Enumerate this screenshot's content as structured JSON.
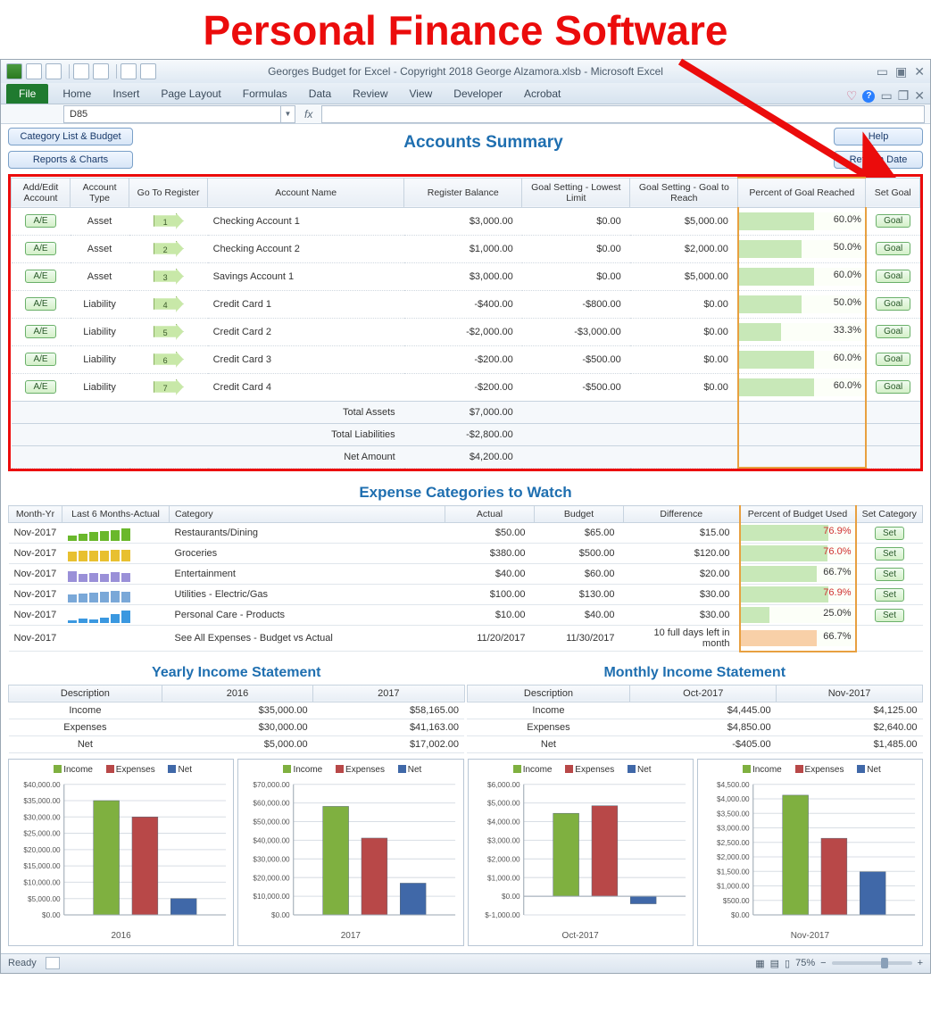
{
  "page_title": "Personal Finance Software",
  "window": {
    "title": "Georges Budget for Excel - Copyright 2018 George Alzamora.xlsb  -  Microsoft Excel",
    "ribbon_tabs": [
      "Home",
      "Insert",
      "Page Layout",
      "Formulas",
      "Data",
      "Review",
      "View",
      "Developer",
      "Acrobat"
    ],
    "file_tab": "File",
    "namebox": "D85",
    "status_ready": "Ready",
    "zoom": "75%"
  },
  "buttons": {
    "category_list": "Category List & Budget",
    "reports": "Reports & Charts",
    "help": "Help",
    "refresh": "Refresh Date",
    "ae": "A/E",
    "goal": "Goal",
    "set": "Set"
  },
  "accounts": {
    "title": "Accounts Summary",
    "headers": {
      "addedit": "Add/Edit Account",
      "type": "Account Type",
      "goto": "Go To Register",
      "name": "Account Name",
      "balance": "Register Balance",
      "low": "Goal Setting - Lowest Limit",
      "reach": "Goal Setting - Goal to Reach",
      "pct": "Percent of Goal Reached",
      "setgoal": "Set Goal"
    },
    "rows": [
      {
        "type": "Asset",
        "idx": "1",
        "name": "Checking Account 1",
        "balance": "$3,000.00",
        "low": "$0.00",
        "reach": "$5,000.00",
        "pct": 60.0,
        "pct_txt": "60.0%"
      },
      {
        "type": "Asset",
        "idx": "2",
        "name": "Checking Account 2",
        "balance": "$1,000.00",
        "low": "$0.00",
        "reach": "$2,000.00",
        "pct": 50.0,
        "pct_txt": "50.0%"
      },
      {
        "type": "Asset",
        "idx": "3",
        "name": "Savings Account 1",
        "balance": "$3,000.00",
        "low": "$0.00",
        "reach": "$5,000.00",
        "pct": 60.0,
        "pct_txt": "60.0%"
      },
      {
        "type": "Liability",
        "idx": "4",
        "name": "Credit Card 1",
        "balance": "-$400.00",
        "low": "-$800.00",
        "reach": "$0.00",
        "pct": 50.0,
        "pct_txt": "50.0%"
      },
      {
        "type": "Liability",
        "idx": "5",
        "name": "Credit Card 2",
        "balance": "-$2,000.00",
        "low": "-$3,000.00",
        "reach": "$0.00",
        "pct": 33.3,
        "pct_txt": "33.3%"
      },
      {
        "type": "Liability",
        "idx": "6",
        "name": "Credit Card 3",
        "balance": "-$200.00",
        "low": "-$500.00",
        "reach": "$0.00",
        "pct": 60.0,
        "pct_txt": "60.0%"
      },
      {
        "type": "Liability",
        "idx": "7",
        "name": "Credit Card 4",
        "balance": "-$200.00",
        "low": "-$500.00",
        "reach": "$0.00",
        "pct": 60.0,
        "pct_txt": "60.0%"
      }
    ],
    "totals": {
      "assets_label": "Total Assets",
      "assets_val": "$7,000.00",
      "liab_label": "Total Liabilities",
      "liab_val": "-$2,800.00",
      "net_label": "Net Amount",
      "net_val": "$4,200.00"
    }
  },
  "expenses": {
    "title": "Expense Categories to Watch",
    "headers": {
      "month": "Month-Yr",
      "last6": "Last 6 Months-Actual",
      "cat": "Category",
      "actual": "Actual",
      "budget": "Budget",
      "diff": "Difference",
      "pct": "Percent of Budget Used",
      "setcat": "Set Category"
    },
    "rows": [
      {
        "month": "Nov-2017",
        "cat": "Restaurants/Dining",
        "actual": "$50.00",
        "budget": "$65.00",
        "diff": "$15.00",
        "pct": 76.9,
        "pct_txt": "76.9%",
        "red": true,
        "spark": [
          6,
          8,
          10,
          11,
          12,
          14
        ],
        "color": "#6ab82c"
      },
      {
        "month": "Nov-2017",
        "cat": "Groceries",
        "actual": "$380.00",
        "budget": "$500.00",
        "diff": "$120.00",
        "pct": 76.0,
        "pct_txt": "76.0%",
        "red": true,
        "spark": [
          11,
          12,
          12,
          12,
          13,
          13
        ],
        "color": "#e8c030"
      },
      {
        "month": "Nov-2017",
        "cat": "Entertainment",
        "actual": "$40.00",
        "budget": "$60.00",
        "diff": "$20.00",
        "pct": 66.7,
        "pct_txt": "66.7%",
        "red": false,
        "spark": [
          12,
          9,
          10,
          9,
          11,
          10
        ],
        "color": "#9a90d8"
      },
      {
        "month": "Nov-2017",
        "cat": "Utilities - Electric/Gas",
        "actual": "$100.00",
        "budget": "$130.00",
        "diff": "$30.00",
        "pct": 76.9,
        "pct_txt": "76.9%",
        "red": true,
        "spark": [
          9,
          10,
          11,
          12,
          13,
          12
        ],
        "color": "#7aa8d8"
      },
      {
        "month": "Nov-2017",
        "cat": "Personal Care - Products",
        "actual": "$10.00",
        "budget": "$40.00",
        "diff": "$30.00",
        "pct": 25.0,
        "pct_txt": "25.0%",
        "red": false,
        "spark": [
          3,
          5,
          4,
          6,
          10,
          14
        ],
        "color": "#3a98e0"
      }
    ],
    "footer": {
      "month": "Nov-2017",
      "cat": "See All Expenses - Budget vs Actual",
      "actual": "11/20/2017",
      "budget": "11/30/2017",
      "diff": "10 full days left in month",
      "pct": 66.7,
      "pct_txt": "66.7%"
    }
  },
  "yearly": {
    "title": "Yearly Income Statement",
    "headers": {
      "desc": "Description",
      "c1": "2016",
      "c2": "2017"
    },
    "rows": [
      {
        "desc": "Income",
        "c1": "$35,000.00",
        "c2": "$58,165.00"
      },
      {
        "desc": "Expenses",
        "c1": "$30,000.00",
        "c2": "$41,163.00"
      },
      {
        "desc": "Net",
        "c1": "$5,000.00",
        "c2": "$17,002.00"
      }
    ]
  },
  "monthly": {
    "title": "Monthly Income Statement",
    "headers": {
      "desc": "Description",
      "c1": "Oct-2017",
      "c2": "Nov-2017"
    },
    "rows": [
      {
        "desc": "Income",
        "c1": "$4,445.00",
        "c2": "$4,125.00"
      },
      {
        "desc": "Expenses",
        "c1": "$4,850.00",
        "c2": "$2,640.00"
      },
      {
        "desc": "Net",
        "c1": "-$405.00",
        "c2": "$1,485.00"
      }
    ]
  },
  "charts": {
    "legend": {
      "income": "Income",
      "expenses": "Expenses",
      "net": "Net"
    },
    "colors": {
      "income": "#7fb040",
      "expenses": "#b84848",
      "net": "#4068a8",
      "grid": "#d8dee4",
      "axis": "#9aa6b2",
      "text": "#555"
    },
    "set": [
      {
        "xlabel": "2016",
        "ymin": 0,
        "ymax": 40000,
        "ystep": 5000,
        "bars": [
          35000,
          30000,
          5000
        ],
        "tick_fmt": "$"
      },
      {
        "xlabel": "2017",
        "ymin": 0,
        "ymax": 70000,
        "ystep": 10000,
        "bars": [
          58165,
          41163,
          17002
        ],
        "tick_fmt": "$"
      },
      {
        "xlabel": "Oct-2017",
        "ymin": -1000,
        "ymax": 6000,
        "ystep": 1000,
        "bars": [
          4445,
          4850,
          -405
        ],
        "tick_fmt": "$"
      },
      {
        "xlabel": "Nov-2017",
        "ymin": 0,
        "ymax": 4500,
        "ystep": 500,
        "bars": [
          4125,
          2640,
          1485
        ],
        "tick_fmt": "$"
      }
    ]
  }
}
